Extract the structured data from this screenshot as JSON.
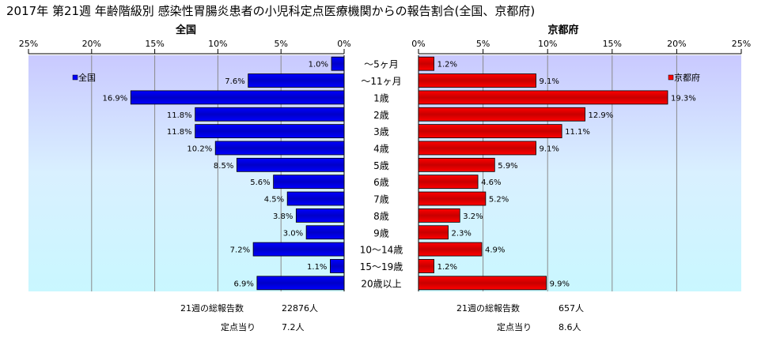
{
  "chart_data": {
    "type": "bar",
    "orientation": "horizontal",
    "title": "2017年 第21週 年齢階級別 感染性胃腸炎患者の小児科定点医療機関からの報告割合(全国、京都府)",
    "categories": [
      "～5ヶ月",
      "～11ヶ月",
      "1歳",
      "2歳",
      "3歳",
      "4歳",
      "5歳",
      "6歳",
      "7歳",
      "8歳",
      "9歳",
      "10～14歳",
      "15～19歳",
      "20歳以上"
    ],
    "xlim": [
      0,
      25
    ],
    "tick_labels": [
      "0%",
      "5%",
      "10%",
      "15%",
      "20%",
      "25%"
    ],
    "grid": true,
    "left_tick_labels": [
      "25%",
      "20%",
      "15%",
      "10%",
      "5%",
      "0%"
    ],
    "right_tick_labels": [
      "0%",
      "5%",
      "10%",
      "15%",
      "20%",
      "25%"
    ],
    "series": [
      {
        "name": "全国",
        "panel_title": "全国",
        "color": "#0000ff",
        "values": [
          1.0,
          7.6,
          16.9,
          11.8,
          11.8,
          10.2,
          8.5,
          5.6,
          4.5,
          3.8,
          3.0,
          7.2,
          1.1,
          6.9
        ],
        "labels": [
          "1.0%",
          "7.6%",
          "16.9%",
          "11.8%",
          "11.8%",
          "10.2%",
          "8.5%",
          "5.6%",
          "4.5%",
          "3.8%",
          "3.0%",
          "7.2%",
          "1.1%",
          "6.9%"
        ],
        "legend_position": "top-left",
        "total_label": "21週の総報告数",
        "total_value": "22876人",
        "per_site_label": "定点当り",
        "per_site_value": "7.2人"
      },
      {
        "name": "京都府",
        "panel_title": "京都府",
        "color": "#ff0000",
        "values": [
          1.2,
          9.1,
          19.3,
          12.9,
          11.1,
          9.1,
          5.9,
          4.6,
          5.2,
          3.2,
          2.3,
          4.9,
          1.2,
          9.9
        ],
        "labels": [
          "1.2%",
          "9.1%",
          "19.3%",
          "12.9%",
          "11.1%",
          "9.1%",
          "5.9%",
          "4.6%",
          "5.2%",
          "3.2%",
          "2.3%",
          "4.9%",
          "1.2%",
          "9.9%"
        ],
        "legend_position": "top-right",
        "total_label": "21週の総報告数",
        "total_value": "657人",
        "per_site_label": "定点当り",
        "per_site_value": "8.6人"
      }
    ]
  }
}
